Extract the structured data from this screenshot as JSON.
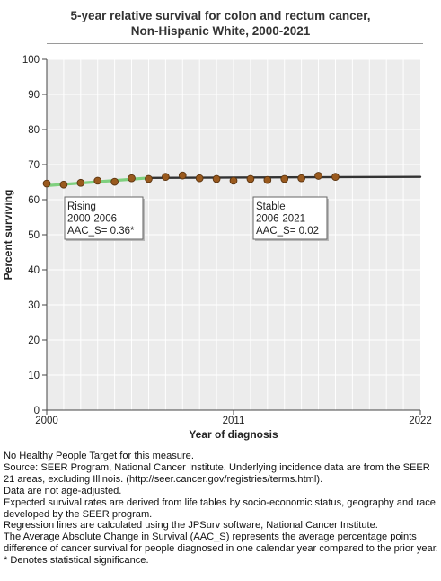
{
  "chart_data": {
    "type": "line",
    "title": "5-year relative survival for colon and rectum cancer,",
    "subtitle": "Non-Hispanic White,  2000-2021",
    "xlabel": "Year of diagnosis",
    "ylabel": "Percent surviving",
    "xlim": [
      2000,
      2022
    ],
    "ylim": [
      0,
      100
    ],
    "x_ticks": [
      "2000",
      "2011",
      "2022"
    ],
    "y_ticks": [
      "0",
      "10",
      "20",
      "30",
      "40",
      "50",
      "60",
      "70",
      "80",
      "90",
      "100"
    ],
    "grid": true,
    "series": [
      {
        "kind": "observed",
        "x": [
          2000,
          2001,
          2002,
          2003,
          2004,
          2005,
          2006,
          2007,
          2008,
          2009,
          2010,
          2011,
          2012,
          2013,
          2014,
          2015,
          2016,
          2017
        ],
        "values": [
          64.6,
          64.3,
          64.8,
          65.4,
          65.1,
          66.1,
          65.9,
          66.5,
          66.9,
          66.1,
          65.9,
          65.4,
          65.9,
          65.6,
          65.9,
          66.1,
          66.8,
          66.5
        ]
      },
      {
        "kind": "fit",
        "x": [
          2000,
          2006
        ],
        "values": [
          64.0,
          66.2
        ],
        "color": "#7fd07f"
      },
      {
        "kind": "fit",
        "x": [
          2006,
          2022
        ],
        "values": [
          66.2,
          66.5
        ],
        "color": "#333333"
      }
    ],
    "annotations": [
      {
        "lines": [
          "Rising",
          "2000-2006",
          "AAC_S=  0.36*"
        ]
      },
      {
        "lines": [
          "Stable",
          "2006-2021",
          "AAC_S=  0.02"
        ]
      }
    ],
    "colors": {
      "points": "#9a5a1e",
      "point_edge": "#5a3410",
      "plot_bg": "#ececec",
      "grid": "#ffffff"
    }
  },
  "footnotes": [
    "No Healthy People Target for this measure.",
    "Source: SEER Program, National Cancer Institute. Underlying incidence data are from the SEER 21 areas, excluding Illinois. (http://seer.cancer.gov/registries/terms.html).",
    "Data are not age-adjusted.",
    "Expected survival rates are derived from life tables by socio-economic status, geography and race developed by the SEER program.",
    "Regression lines are calculated using the JPSurv software, National Cancer Institute.",
    "The Average Absolute Change in Survival (AAC_S) represents the average percentage points difference of cancer survival for people diagnosed in one calendar year compared to the prior year.",
    "* Denotes statistical significance."
  ]
}
